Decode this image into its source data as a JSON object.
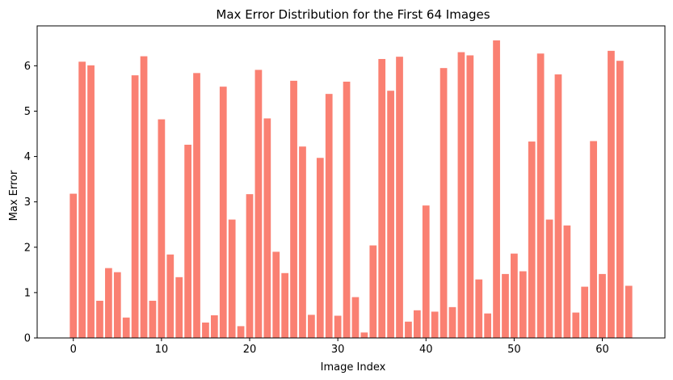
{
  "chart_data": {
    "type": "bar",
    "title": "Max Error Distribution for the First 64 Images",
    "xlabel": "Image Index",
    "ylabel": "Max Error",
    "bar_color": "#fa8072",
    "xlim": [
      -4.1,
      67.1
    ],
    "ylim": [
      0,
      6.88
    ],
    "xticks": [
      0,
      10,
      20,
      30,
      40,
      50,
      60
    ],
    "yticks": [
      0,
      1,
      2,
      3,
      4,
      5,
      6
    ],
    "categories": [
      0,
      1,
      2,
      3,
      4,
      5,
      6,
      7,
      8,
      9,
      10,
      11,
      12,
      13,
      14,
      15,
      16,
      17,
      18,
      19,
      20,
      21,
      22,
      23,
      24,
      25,
      26,
      27,
      28,
      29,
      30,
      31,
      32,
      33,
      34,
      35,
      36,
      37,
      38,
      39,
      40,
      41,
      42,
      43,
      44,
      45,
      46,
      47,
      48,
      49,
      50,
      51,
      52,
      53,
      54,
      55,
      56,
      57,
      58,
      59,
      60,
      61,
      62,
      63
    ],
    "values": [
      3.18,
      6.09,
      6.01,
      0.82,
      1.54,
      1.45,
      0.45,
      5.79,
      6.21,
      0.82,
      4.82,
      1.84,
      1.34,
      4.26,
      5.84,
      0.34,
      0.5,
      5.54,
      2.61,
      0.26,
      3.17,
      5.91,
      4.84,
      1.9,
      1.43,
      5.67,
      4.22,
      0.51,
      3.97,
      5.38,
      0.49,
      5.65,
      0.9,
      0.12,
      2.04,
      6.15,
      5.45,
      6.2,
      0.36,
      0.61,
      2.92,
      0.58,
      5.95,
      0.68,
      6.3,
      6.23,
      1.29,
      0.54,
      6.56,
      1.41,
      1.86,
      1.47,
      4.33,
      6.27,
      2.61,
      5.81,
      2.48,
      0.56,
      1.13,
      4.34,
      1.41,
      6.33,
      6.11,
      1.15
    ]
  }
}
